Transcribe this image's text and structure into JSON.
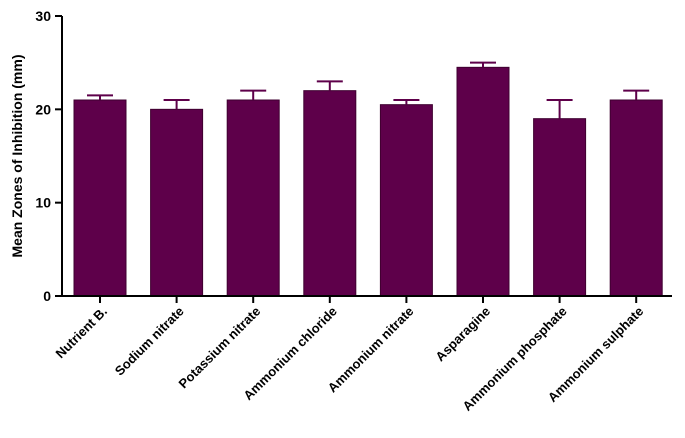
{
  "chart_data": {
    "type": "bar",
    "title": "",
    "xlabel": "",
    "ylabel": "Mean Zones of Inhibition (mm)",
    "ylim": [
      0,
      30
    ],
    "yticks": [
      0,
      10,
      20,
      30
    ],
    "grid": false,
    "bar_color": "#5e004a",
    "categories": [
      "Nutrient B.",
      "Sodium nitrate",
      "Potassium nitrate",
      "Ammonium chloride",
      "Ammonium nitrate",
      "Asparagine",
      "Ammonium phosphate",
      "Ammonium sulphate"
    ],
    "values": [
      21,
      20,
      21,
      22,
      20.5,
      24.5,
      19,
      21
    ],
    "error_upper": [
      0.5,
      1,
      1,
      1,
      0.5,
      0.5,
      2,
      1
    ]
  }
}
